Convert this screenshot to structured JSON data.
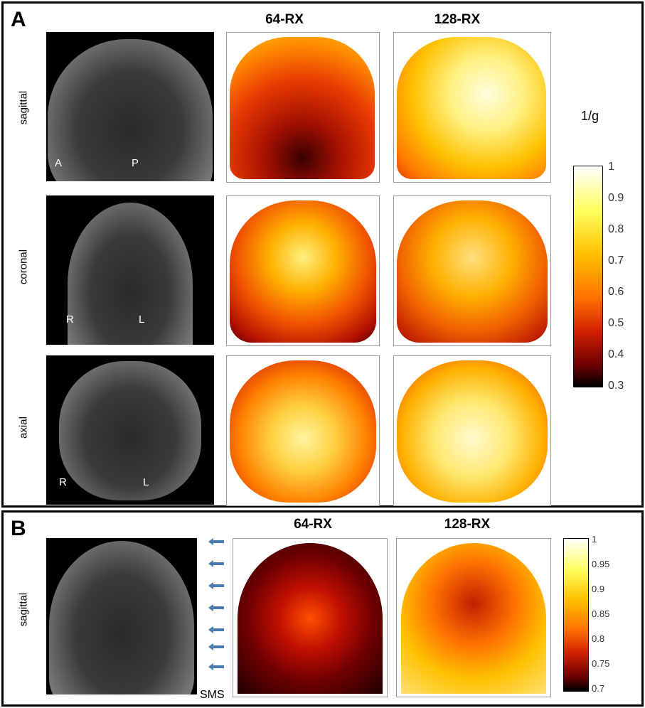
{
  "panelA": {
    "label": "A",
    "columns": [
      "64-RX",
      "128-RX"
    ],
    "rows": [
      {
        "name": "sagittal",
        "orient": [
          "A",
          "P"
        ]
      },
      {
        "name": "coronal",
        "orient": [
          "R",
          "L"
        ]
      },
      {
        "name": "axial",
        "orient": [
          "R",
          "L"
        ]
      }
    ],
    "colorbar_unit": "1/g",
    "colorbar_ticks": [
      "1",
      "0.9",
      "0.8",
      "0.7",
      "0.6",
      "0.5",
      "0.4",
      "0.3"
    ]
  },
  "panelB": {
    "label": "B",
    "columns": [
      "64-RX",
      "128-RX"
    ],
    "row": "sagittal",
    "sms_label": "SMS",
    "colorbar_ticks": [
      "1",
      "0.95",
      "0.9",
      "0.85",
      "0.8",
      "0.75",
      "0.7"
    ]
  },
  "colors": {
    "arrow": "#4a7bb0",
    "border": "#000000"
  }
}
